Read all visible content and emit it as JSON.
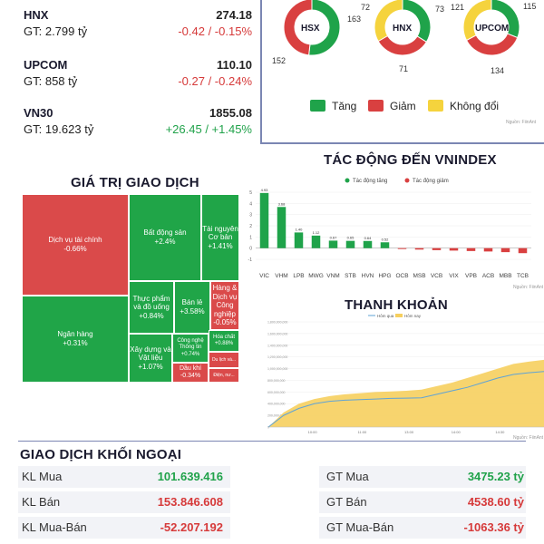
{
  "indices": [
    {
      "name": "HNX",
      "value": "274.18",
      "gt": "GT: 2.799 tỷ",
      "change": "-0.42 / -0.15%",
      "dir": "down"
    },
    {
      "name": "UPCOM",
      "value": "110.10",
      "gt": "GT: 858 tỷ",
      "change": "-0.27 / -0.24%",
      "dir": "down"
    },
    {
      "name": "VN30",
      "value": "1855.08",
      "gt": "GT: 19.623 tỷ",
      "change": "+26.45 / +1.45%",
      "dir": "up"
    }
  ],
  "breadth": {
    "donuts": [
      {
        "name": "HSX",
        "up": "163",
        "down": "152",
        "flat": ""
      },
      {
        "name": "HNX",
        "up": "73",
        "down": "71",
        "flat": "72"
      },
      {
        "name": "UPCOM",
        "up": "115",
        "down": "134",
        "flat": "121"
      }
    ],
    "legend": {
      "up": "Tăng",
      "down": "Giảm",
      "flat": "Không đổi"
    },
    "source": "Nguồn: FiinAnt"
  },
  "colors": {
    "up": "#1fa34a",
    "down": "#d94040",
    "flat": "#f5d33d",
    "frame": "#7b86b3",
    "liquidity_today": "#f6cf5e",
    "liquidity_prev": "#5fa3d6"
  },
  "treemap": {
    "title": "GIÁ TRỊ GIAO DỊCH",
    "tiles": [
      {
        "label": "Dịch vụ tài chính",
        "change": "-0.66%",
        "dir": "down"
      },
      {
        "label": "Ngân hàng",
        "change": "+0.31%",
        "dir": "up"
      },
      {
        "label": "Bất động sản",
        "change": "+2.4%",
        "dir": "up"
      },
      {
        "label": "Tài nguyên Cơ bản",
        "change": "+1.41%",
        "dir": "up"
      },
      {
        "label": "Thực phẩm và đồ uống",
        "change": "+0.84%",
        "dir": "up"
      },
      {
        "label": "Bán lẻ",
        "change": "+3.58%",
        "dir": "up"
      },
      {
        "label": "Hàng & Dịch vụ Công nghiệp",
        "change": "-0.05%",
        "dir": "down"
      },
      {
        "label": "Xây dựng và Vật liệu",
        "change": "+1.07%",
        "dir": "up"
      },
      {
        "label": "Công nghệ Thông tin",
        "change": "+0.74%",
        "dir": "up"
      },
      {
        "label": "Hóa chất",
        "change": "+0.88%",
        "dir": "up"
      },
      {
        "label": "Dầu khí",
        "change": "-0.34%",
        "dir": "down"
      },
      {
        "label": "Du lịch và...",
        "change": "",
        "dir": "down"
      },
      {
        "label": "Điện, nư...",
        "change": "",
        "dir": "down"
      }
    ]
  },
  "chart_data": [
    {
      "type": "bar",
      "title": "TÁC ĐỘNG ĐẾN VNINDEX",
      "legend": [
        "Tác động tăng",
        "Tác động giảm"
      ],
      "categories": [
        "VIC",
        "VHM",
        "LPB",
        "MWG",
        "VNM",
        "STB",
        "HVN",
        "HPG",
        "OCB",
        "MSB",
        "VCB",
        "VIX",
        "VPB",
        "ACB",
        "MBB",
        "TCB"
      ],
      "values": [
        4.93,
        3.68,
        1.4,
        1.12,
        0.67,
        0.65,
        0.64,
        0.52,
        -0.08,
        -0.13,
        -0.18,
        -0.22,
        -0.26,
        -0.3,
        -0.36,
        -0.45
      ],
      "value_labels": [
        "4.93",
        "3.68",
        "1.40",
        "1.12",
        "0.67",
        "0.65",
        "0.64",
        "0.52",
        "",
        "",
        "",
        "",
        "",
        "",
        "",
        ""
      ],
      "ylim": [
        -1,
        5
      ],
      "yticks": [
        "5",
        "4",
        "3",
        "2",
        "1",
        "0",
        "-1"
      ],
      "source": "Nguồn: FiinAnt"
    },
    {
      "type": "area",
      "title": "THANH KHOẢN",
      "legend": [
        "Hôm qua",
        "Hôm nay"
      ],
      "yticks": [
        "1,800,000,000",
        "1,600,000,000",
        "1,400,000,000",
        "1,200,000,000",
        "1,000,000,000",
        "800,000,000",
        "600,000,000",
        "400,000,000",
        "200,000,000",
        "0"
      ],
      "xticks": [
        "10:00",
        "11:00",
        "13:00",
        "14:00",
        "14:30"
      ],
      "ylim": [
        0,
        1800000000
      ],
      "today": [
        0,
        250000000,
        400000000,
        480000000,
        530000000,
        560000000,
        580000000,
        600000000,
        610000000,
        620000000,
        640000000,
        700000000,
        760000000,
        840000000,
        920000000,
        1000000000,
        1080000000,
        1120000000,
        1150000000
      ],
      "yesterday": [
        0,
        200000000,
        320000000,
        400000000,
        440000000,
        460000000,
        470000000,
        480000000,
        490000000,
        495000000,
        500000000,
        560000000,
        620000000,
        680000000,
        760000000,
        840000000,
        900000000,
        930000000,
        950000000
      ],
      "source": "Nguồn: FiinAnt"
    }
  ],
  "foreign": {
    "title": "GIAO DỊCH KHỐI NGOẠI",
    "rows": [
      {
        "l_label": "KL Mua",
        "l_value": "101.639.416",
        "l_dir": "up",
        "r_label": "GT Mua",
        "r_value": "3475.23 tỷ",
        "r_dir": "up"
      },
      {
        "l_label": "KL Bán",
        "l_value": "153.846.608",
        "l_dir": "down",
        "r_label": "GT Bán",
        "r_value": "4538.60 tỷ",
        "r_dir": "down"
      },
      {
        "l_label": "KL Mua-Bán",
        "l_value": "-52.207.192",
        "l_dir": "down",
        "r_label": "GT Mua-Bán",
        "r_value": "-1063.36 tỷ",
        "r_dir": "down"
      }
    ]
  }
}
